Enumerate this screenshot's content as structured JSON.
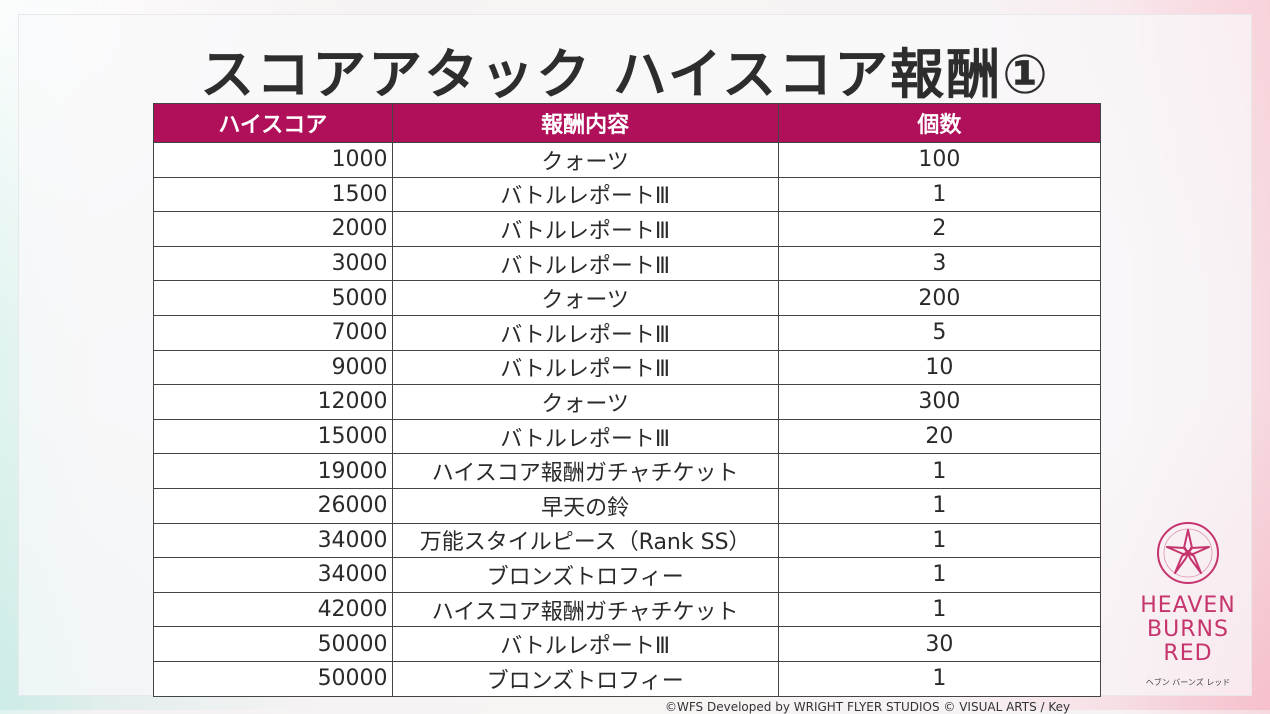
{
  "title": "スコアアタック ハイスコア報酬①",
  "table": {
    "headers": [
      "ハイスコア",
      "報酬内容",
      "個数"
    ],
    "rows": [
      {
        "score": "1000",
        "content": "クォーツ",
        "count": "100"
      },
      {
        "score": "1500",
        "content": "バトルレポートⅢ",
        "count": "1"
      },
      {
        "score": "2000",
        "content": "バトルレポートⅢ",
        "count": "2"
      },
      {
        "score": "3000",
        "content": "バトルレポートⅢ",
        "count": "3"
      },
      {
        "score": "5000",
        "content": "クォーツ",
        "count": "200"
      },
      {
        "score": "7000",
        "content": "バトルレポートⅢ",
        "count": "5"
      },
      {
        "score": "9000",
        "content": "バトルレポートⅢ",
        "count": "10"
      },
      {
        "score": "12000",
        "content": "クォーツ",
        "count": "300"
      },
      {
        "score": "15000",
        "content": "バトルレポートⅢ",
        "count": "20"
      },
      {
        "score": "19000",
        "content": "ハイスコア報酬ガチャチケット",
        "count": "1"
      },
      {
        "score": "26000",
        "content": "早天の鈴",
        "count": "1"
      },
      {
        "score": "34000",
        "content": "万能スタイルピース（Rank SS）",
        "count": "1"
      },
      {
        "score": "34000",
        "content": "ブロンズトロフィー",
        "count": "1"
      },
      {
        "score": "42000",
        "content": "ハイスコア報酬ガチャチケット",
        "count": "1"
      },
      {
        "score": "50000",
        "content": "バトルレポートⅢ",
        "count": "30"
      },
      {
        "score": "50000",
        "content": "ブロンズトロフィー",
        "count": "1"
      }
    ]
  },
  "logo": {
    "line1": "HEAVEN",
    "line2": "BURNS",
    "line3": "RED",
    "sub": "ヘブン バーンズ レッド"
  },
  "copyright": "©WFS Developed by WRIGHT FLYER STUDIOS © VISUAL ARTS / Key",
  "colors": {
    "header_bg": "#b0105a",
    "logo_accent": "#c6346e"
  }
}
